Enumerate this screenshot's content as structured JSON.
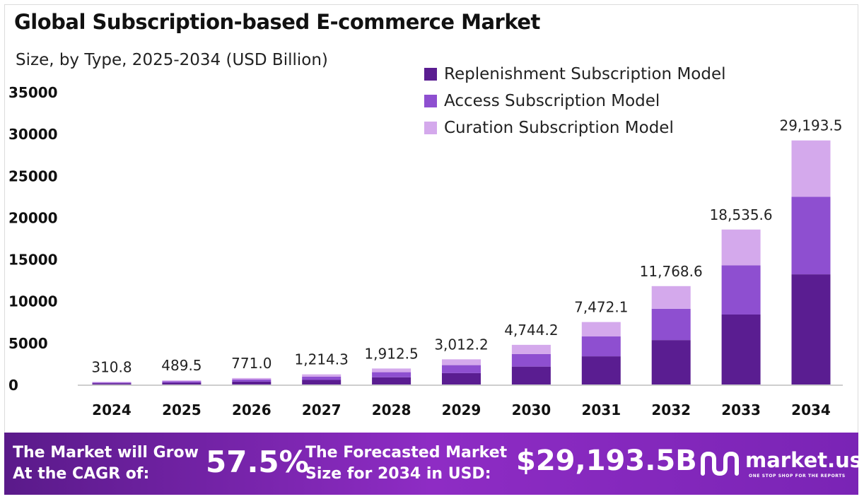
{
  "header": {
    "title": "Global Subscription-based E-commerce Market",
    "subtitle": "Size, by Type, 2025-2034 (USD Billion)"
  },
  "colors": {
    "replenishment": "#5a1d91",
    "access": "#8e4fd0",
    "curation": "#d4a9ec",
    "banner_start": "#5a1a8a",
    "banner_end": "#8e2cc4"
  },
  "chart_data": {
    "type": "bar",
    "stacked": true,
    "categories": [
      "2024",
      "2025",
      "2026",
      "2027",
      "2028",
      "2029",
      "2030",
      "2031",
      "2032",
      "2033",
      "2034"
    ],
    "series": [
      {
        "name": "Replenishment Subscription Model",
        "values": [
          140,
          221,
          348,
          548,
          864,
          1360,
          2142,
          3373,
          5314,
          8370,
          13180
        ]
      },
      {
        "name": "Access Subscription Model",
        "values": [
          99,
          155,
          245,
          386,
          608,
          957,
          1508,
          2374,
          3740,
          5890,
          9280
        ]
      },
      {
        "name": "Curation Subscription Model",
        "values": [
          71.8,
          113.5,
          178,
          280.3,
          440.5,
          695.2,
          1094.2,
          1725.1,
          2714.6,
          4275.6,
          6733.5
        ]
      }
    ],
    "totals": [
      "310.8",
      "489.5",
      "771.0",
      "1,214.3",
      "1,912.5",
      "3,012.2",
      "4,744.2",
      "7,472.1",
      "11,768.6",
      "18,535.6",
      "29,193.5"
    ],
    "yticks": [
      "0",
      "5000",
      "10000",
      "15000",
      "20000",
      "25000",
      "30000",
      "35000"
    ],
    "ylim": [
      0,
      35000
    ],
    "grid": false,
    "legend": "top-right"
  },
  "banner": {
    "cagr_label_line1": "The Market will Grow",
    "cagr_label_line2": "At the CAGR of:",
    "cagr_value": "57.5%",
    "forecast_label_line1": "The Forecasted Market",
    "forecast_label_line2": "Size for 2034 in USD:",
    "forecast_value": "$29,193.5B",
    "brand_name": "market.us",
    "brand_tagline": "ONE STOP SHOP FOR THE REPORTS",
    "brand_icon": "market-us-logo-icon"
  }
}
